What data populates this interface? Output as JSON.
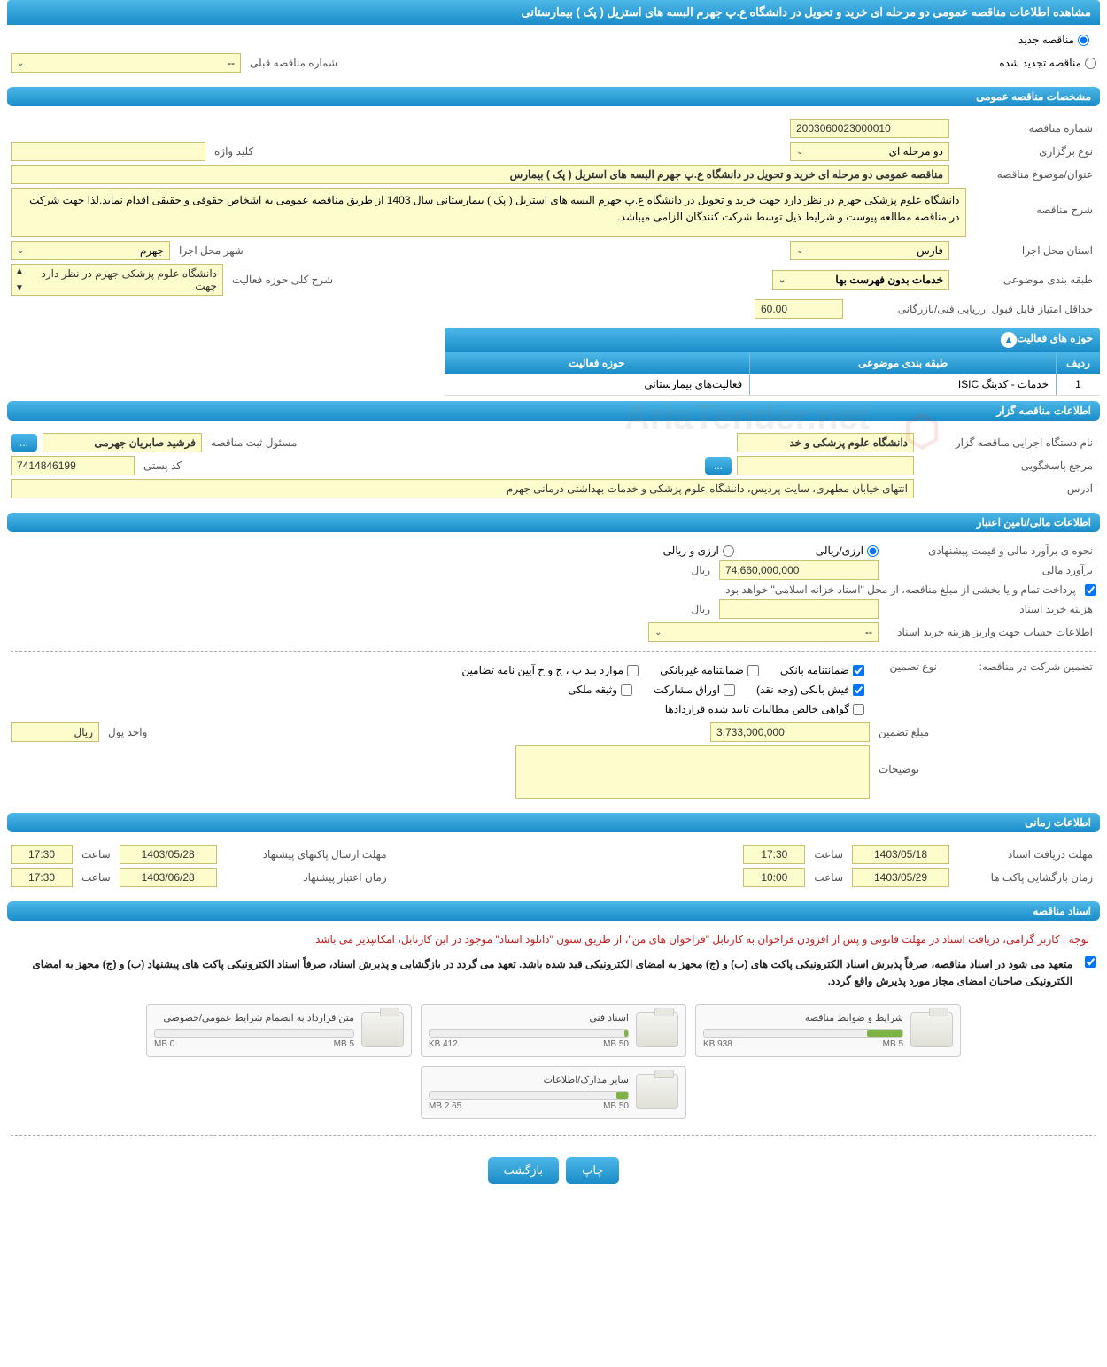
{
  "page_title": "مشاهده اطلاعات مناقصه عمومی دو مرحله ای خرید و تحویل در دانشگاه ع.پ جهرم البسه های استریل ( پک ) بیمارستانی",
  "top_radios": {
    "new_tender": "مناقصه جدید",
    "renewed_tender": "مناقصه تجدید شده"
  },
  "prev_number": {
    "label": "شماره مناقصه قبلی",
    "value": "--"
  },
  "sections": {
    "general": "مشخصات مناقصه عمومی",
    "activities": "حوزه های فعالیت",
    "organizer": "اطلاعات مناقصه گزار",
    "financial": "اطلاعات مالی/تامین اعتبار",
    "time": "اطلاعات زمانی",
    "docs": "اسناد مناقصه"
  },
  "general": {
    "tender_number": {
      "label": "شماره مناقصه",
      "value": "2003060023000010"
    },
    "holding_type": {
      "label": "نوع برگزاری",
      "value": "دو مرحله ای"
    },
    "keyword": {
      "label": "کلید واژه",
      "value": ""
    },
    "subject": {
      "label": "عنوان/موضوع مناقصه",
      "value": "مناقصه عمومی دو مرحله ای خرید و تحویل در دانشگاه ع.پ جهرم البسه های استریل ( پک ) بیمارس"
    },
    "desc": {
      "label": "شرح مناقصه",
      "value": "دانشگاه علوم پزشکی جهرم در نظر دارد جهت خرید و تحویل در دانشگاه ع.پ جهرم البسه های استریل ( پک ) بیمارستانی  سال 1403 از طریق مناقصه عمومی به اشخاص حقوقی و حقیقی اقدام نماید.لذا جهت شرکت در مناقصه مطالعه پیوست و شرایط ذیل توسط شرکت کنندگان الزامی میباشد."
    },
    "province": {
      "label": "استان محل اجرا",
      "value": "فارس"
    },
    "city": {
      "label": "شهر محل اجرا",
      "value": "جهرم"
    },
    "category": {
      "label": "طبقه بندی موضوعی",
      "value": "خدمات بدون فهرست بها"
    },
    "area_desc": {
      "label": "شرح کلی حوزه فعالیت",
      "value": "دانشگاه علوم پزشکی جهرم در نظر دارد جهت"
    },
    "min_score": {
      "label": "حداقل امتیاز قابل قبول ارزیابی فنی/بازرگانی",
      "value": "60.00"
    }
  },
  "activity_table": {
    "col_idx": "ردیف",
    "col_cat": "طبقه بندی موضوعی",
    "col_act": "حوزه فعالیت",
    "rows": [
      {
        "idx": "1",
        "cat": "خدمات - کدینگ ISIC",
        "act": "فعالیت‌های بیمارستانی"
      }
    ]
  },
  "organizer": {
    "executor": {
      "label": "نام دستگاه اجرایی مناقصه گزار",
      "value": "دانشگاه علوم پزشکی و خد"
    },
    "registrar": {
      "label": "مسئول ثبت مناقصه",
      "value": "فرشید صابریان جهرمی"
    },
    "responder": {
      "label": "مرجع پاسخگویی",
      "value": ""
    },
    "postal": {
      "label": "کد پستی",
      "value": "7414846199"
    },
    "address": {
      "label": "آدرس",
      "value": "انتهای خیابان مطهری، سایت پردیس، دانشگاه علوم پزشکی و خدمات بهداشتی درمانی جهرم"
    },
    "more_btn": "..."
  },
  "financial": {
    "estimate_method": {
      "label": "نحوه ی برآورد مالی و قیمت پیشنهادی",
      "opt_rial": "ارزی/ریالی",
      "opt_both": "ارزی و ریالی"
    },
    "estimate": {
      "label": "برآورد مالی",
      "value": "74,660,000,000",
      "unit": "ریال"
    },
    "payment_note": "پرداخت تمام و یا بخشی از مبلغ مناقصه، از محل \"اسناد خزانه اسلامی\" خواهد بود.",
    "doc_cost": {
      "label": "هزینه خرید اسناد",
      "value": "",
      "unit": "ریال"
    },
    "account_info": {
      "label": "اطلاعات حساب جهت واریز هزینه خرید اسناد",
      "value": "--"
    },
    "guarantee_label": "تضمین شرکت در مناقصه:",
    "guarantee_type_label": "نوع تضمین",
    "guarantee_opts": {
      "bank": "ضمانتنامه بانکی",
      "nonbank": "ضمانتنامه غیربانکی",
      "bylaw": "موارد بند پ ، ج و خ آیین نامه تضامین",
      "cash": "فیش بانکی (وجه نقد)",
      "bonds": "اوراق مشارکت",
      "property": "وثیقه ملکی",
      "claims": "گواهی خالص مطالبات تایید شده قراردادها"
    },
    "guarantee_amount": {
      "label": "مبلغ تضمین",
      "value": "3,733,000,000",
      "unit_label": "واحد پول",
      "unit": "ریال"
    },
    "notes": {
      "label": "توضیحات",
      "value": ""
    }
  },
  "time": {
    "doc_deadline": {
      "label": "مهلت دریافت اسناد",
      "date": "1403/05/18",
      "time_label": "ساعت",
      "time": "17:30"
    },
    "bid_deadline": {
      "label": "مهلت ارسال پاکتهای پیشنهاد",
      "date": "1403/05/28",
      "time_label": "ساعت",
      "time": "17:30"
    },
    "opening": {
      "label": "زمان بازگشایی پاکت ها",
      "date": "1403/05/29",
      "time_label": "ساعت",
      "time": "10:00"
    },
    "validity": {
      "label": "زمان اعتبار پیشنهاد",
      "date": "1403/06/28",
      "time_label": "ساعت",
      "time": "17:30"
    }
  },
  "docs": {
    "notice_red": "توجه : کاربر گرامی، دریافت اسناد در مهلت قانونی و پس از افزودن فراخوان به کارتابل \"فراخوان های من\"، از طریق ستون \"دانلود اسناد\" موجود در این کارتابل، امکانپذیر می باشد.",
    "notice_bold": "متعهد می شود در اسناد مناقصه، صرفاً پذیرش اسناد الکترونیکی پاکت های (ب) و (ج) مجهز به امضای الکترونیکی قید شده باشد. تعهد می گردد در بازگشایی و پذیرش اسناد، صرفاً اسناد الکترونیکی پاکت های پیشنهاد (ب) و (ج) مجهز به امضای الکترونیکی صاحبان امضای مجاز مورد پذیرش واقع گردد.",
    "files": [
      {
        "title": "شرایط و ضوابط مناقصه",
        "used": "938 KB",
        "total": "5 MB",
        "pct": 18
      },
      {
        "title": "اسناد فنی",
        "used": "412 KB",
        "total": "50 MB",
        "pct": 2
      },
      {
        "title": "متن قرارداد به انضمام شرایط عمومی/خصوصی",
        "used": "0 MB",
        "total": "5 MB",
        "pct": 0
      },
      {
        "title": "سایر مدارک/اطلاعات",
        "used": "2.65 MB",
        "total": "50 MB",
        "pct": 6
      }
    ]
  },
  "buttons": {
    "print": "چاپ",
    "back": "بازگشت"
  },
  "colors": {
    "header_grad_top": "#4db8e8",
    "header_grad_bottom": "#1a8cc8",
    "field_bg": "#fdfccc",
    "field_border": "#c8c070",
    "progress_fill": "#7cb342",
    "notice_red": "#c02020"
  }
}
